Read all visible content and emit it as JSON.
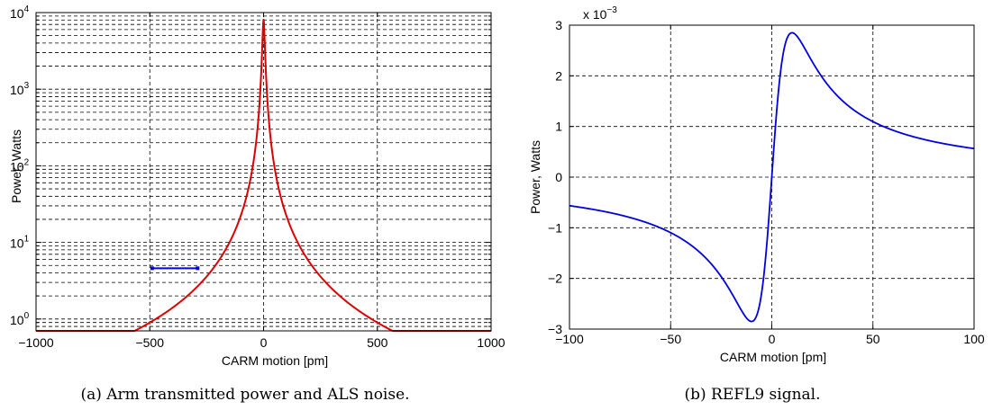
{
  "chart_data": [
    {
      "id": "a",
      "type": "line",
      "caption": "(a) Arm transmitted power and ALS noise.",
      "xlabel": "CARM motion [pm]",
      "ylabel": "Power, Watts",
      "xlim": [
        -1000,
        1000
      ],
      "ylim": [
        0.7,
        10000
      ],
      "yscale": "log",
      "grid": true,
      "x_ticks": [
        "−1000",
        "−500",
        "0",
        "500",
        "1000"
      ],
      "x_tick_values": [
        -1000,
        -500,
        0,
        500,
        1000
      ],
      "y_ticks": [
        {
          "value": 1,
          "base": "10",
          "exp": "0"
        },
        {
          "value": 10,
          "base": "10",
          "exp": "1"
        },
        {
          "value": 100,
          "base": "10",
          "exp": "2"
        },
        {
          "value": 1000,
          "base": "10",
          "exp": "3"
        },
        {
          "value": 10000,
          "base": "10",
          "exp": "4"
        }
      ],
      "series": [
        {
          "color": "#dd0000",
          "kind": "lorentzian",
          "peak": 8000,
          "half_width_pm": 5.3,
          "x": [
            -1000,
            -800,
            -600,
            -500,
            -400,
            -300,
            -200,
            -100,
            -50,
            -20,
            0,
            20,
            50,
            100,
            200,
            300,
            400,
            500,
            600,
            800,
            1000
          ],
          "y": [
            0.75,
            1.2,
            2.1,
            3.0,
            4.6,
            8.1,
            18,
            71,
            280,
            1500,
            8000,
            1500,
            280,
            71,
            18,
            8.1,
            4.6,
            3.0,
            2.1,
            1.2,
            0.75
          ]
        },
        {
          "color": "#0000dd",
          "kind": "segment",
          "x": [
            -490,
            -290
          ],
          "y": [
            4.6,
            4.6
          ]
        }
      ]
    },
    {
      "id": "b",
      "type": "line",
      "caption": "(b) REFL9 signal.",
      "xlabel": "CARM motion [pm]",
      "ylabel": "Power, Watts",
      "xlim": [
        -100,
        100
      ],
      "ylim": [
        -3,
        3
      ],
      "y_multiplier": "x 10",
      "y_multiplier_exp": "−3",
      "grid": true,
      "x_ticks": [
        "−100",
        "−50",
        "0",
        "50",
        "100"
      ],
      "x_tick_values": [
        -100,
        -50,
        0,
        50,
        100
      ],
      "y_ticks": [
        "−3",
        "−2",
        "−1",
        "0",
        "1",
        "2",
        "3"
      ],
      "y_tick_values": [
        -3,
        -2,
        -1,
        0,
        1,
        2,
        3
      ],
      "series": [
        {
          "color": "#0000dd",
          "kind": "dispersion",
          "amplitude": 5.7,
          "half_width_pm": 10,
          "x": [
            -100,
            -75,
            -50,
            -30,
            -20,
            -10,
            -5,
            0,
            5,
            10,
            20,
            30,
            50,
            75,
            100
          ],
          "y": [
            -0.56,
            -0.75,
            -1.1,
            -1.7,
            -2.3,
            -2.85,
            -2.3,
            0,
            2.3,
            2.85,
            2.3,
            1.7,
            1.1,
            0.75,
            0.56
          ]
        }
      ]
    }
  ]
}
